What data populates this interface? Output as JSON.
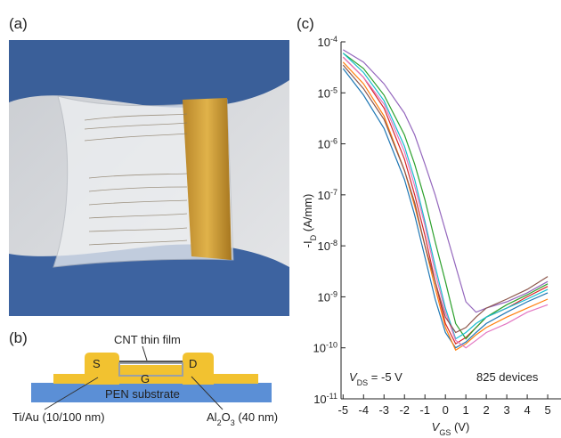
{
  "panels": {
    "a": "(a)",
    "b": "(b)",
    "c": "(c)"
  },
  "diagram": {
    "cnt": "CNT thin film",
    "source": "S",
    "drain": "D",
    "gate": "G",
    "substrate": "PEN substrate",
    "metal": "Ti/Au (10/100 nm)",
    "dielectric": [
      "Al",
      "2",
      "O",
      "3",
      " (40 nm)"
    ]
  },
  "chart_data": {
    "type": "line",
    "log_y": true,
    "y_label": [
      "-I",
      "D",
      " (A/mm)"
    ],
    "x_label": [
      "V",
      "GS",
      " (V)"
    ],
    "annotations": [
      [
        "V",
        "DS",
        " = -5 V"
      ],
      "825 devices"
    ],
    "xlim": [
      -5.1,
      5.65
    ],
    "xticks": [
      -5,
      -4,
      -3,
      -2,
      -1,
      0,
      1,
      2,
      3,
      4,
      5
    ],
    "ylim": [
      1e-11,
      0.0001
    ],
    "yticks": [
      {
        "value": 1e-11,
        "label": [
          "10",
          "-11"
        ]
      },
      {
        "value": 1e-10,
        "label": [
          "10",
          "-10"
        ]
      },
      {
        "value": 1e-09,
        "label": [
          "10",
          "-9"
        ]
      },
      {
        "value": 1e-08,
        "label": [
          "10",
          "-8"
        ]
      },
      {
        "value": 1e-07,
        "label": [
          "10",
          "-7"
        ]
      },
      {
        "value": 1e-06,
        "label": [
          "10",
          "-6"
        ]
      },
      {
        "value": 1e-05,
        "label": [
          "10",
          "-5"
        ]
      },
      {
        "value": 0.0001,
        "label": [
          "10",
          "-4"
        ]
      }
    ],
    "x": [
      -5,
      -4,
      -3,
      -2,
      -1.5,
      -1,
      -0.5,
      0,
      0.5,
      1,
      1.5,
      2,
      3,
      4,
      5
    ],
    "series": [
      {
        "color": "#1f77b4",
        "values": [
          3e-05,
          9e-06,
          2e-06,
          2e-07,
          4e-08,
          6e-09,
          9e-10,
          2e-10,
          1e-10,
          1.3e-10,
          2e-10,
          3e-10,
          5e-10,
          8e-10,
          1.2e-09
        ]
      },
      {
        "color": "#d62728",
        "values": [
          5e-05,
          2e-05,
          5e-06,
          5e-07,
          1e-07,
          1.6e-08,
          2e-09,
          3e-10,
          1.2e-10,
          1.6e-10,
          2.5e-10,
          4e-10,
          6e-10,
          1e-09,
          1.6e-09
        ]
      },
      {
        "color": "#2ca02c",
        "values": [
          6e-05,
          3e-05,
          9e-06,
          1.5e-06,
          4e-07,
          8e-08,
          1.2e-08,
          2e-09,
          3e-10,
          1.5e-10,
          2.5e-10,
          4e-10,
          7e-10,
          1.1e-09,
          1.8e-09
        ]
      },
      {
        "color": "#9467bd",
        "values": [
          7e-05,
          4e-05,
          1.5e-05,
          4e-06,
          1.5e-06,
          4e-07,
          1e-07,
          2e-08,
          4e-09,
          8e-10,
          5e-10,
          6e-10,
          8e-10,
          1.2e-09,
          2e-09
        ]
      },
      {
        "color": "#ff7f0e",
        "values": [
          4e-05,
          1.5e-05,
          3.5e-06,
          3e-07,
          6e-08,
          1e-08,
          1.5e-09,
          2.5e-10,
          9e-11,
          1.2e-10,
          1.8e-10,
          2.5e-10,
          4e-10,
          6e-10,
          9e-10
        ]
      },
      {
        "color": "#17becf",
        "values": [
          6e-05,
          2.5e-05,
          7e-06,
          9e-07,
          2e-07,
          3e-08,
          4e-09,
          6e-10,
          1.5e-10,
          2e-10,
          3e-10,
          4e-10,
          6e-10,
          9e-10,
          1.4e-09
        ]
      },
      {
        "color": "#e377c2",
        "values": [
          5e-05,
          2e-05,
          6e-06,
          7e-07,
          1.5e-07,
          2.5e-08,
          3e-09,
          5e-10,
          1.4e-10,
          1e-10,
          1.4e-10,
          2e-10,
          3e-10,
          5e-10,
          7e-10
        ]
      },
      {
        "color": "#8c564b",
        "values": [
          3.5e-05,
          1.2e-05,
          3e-06,
          3e-07,
          7e-08,
          1e-08,
          2e-09,
          4e-10,
          2e-10,
          2.5e-10,
          4e-10,
          6e-10,
          9e-10,
          1.4e-09,
          2.5e-09
        ]
      }
    ]
  }
}
